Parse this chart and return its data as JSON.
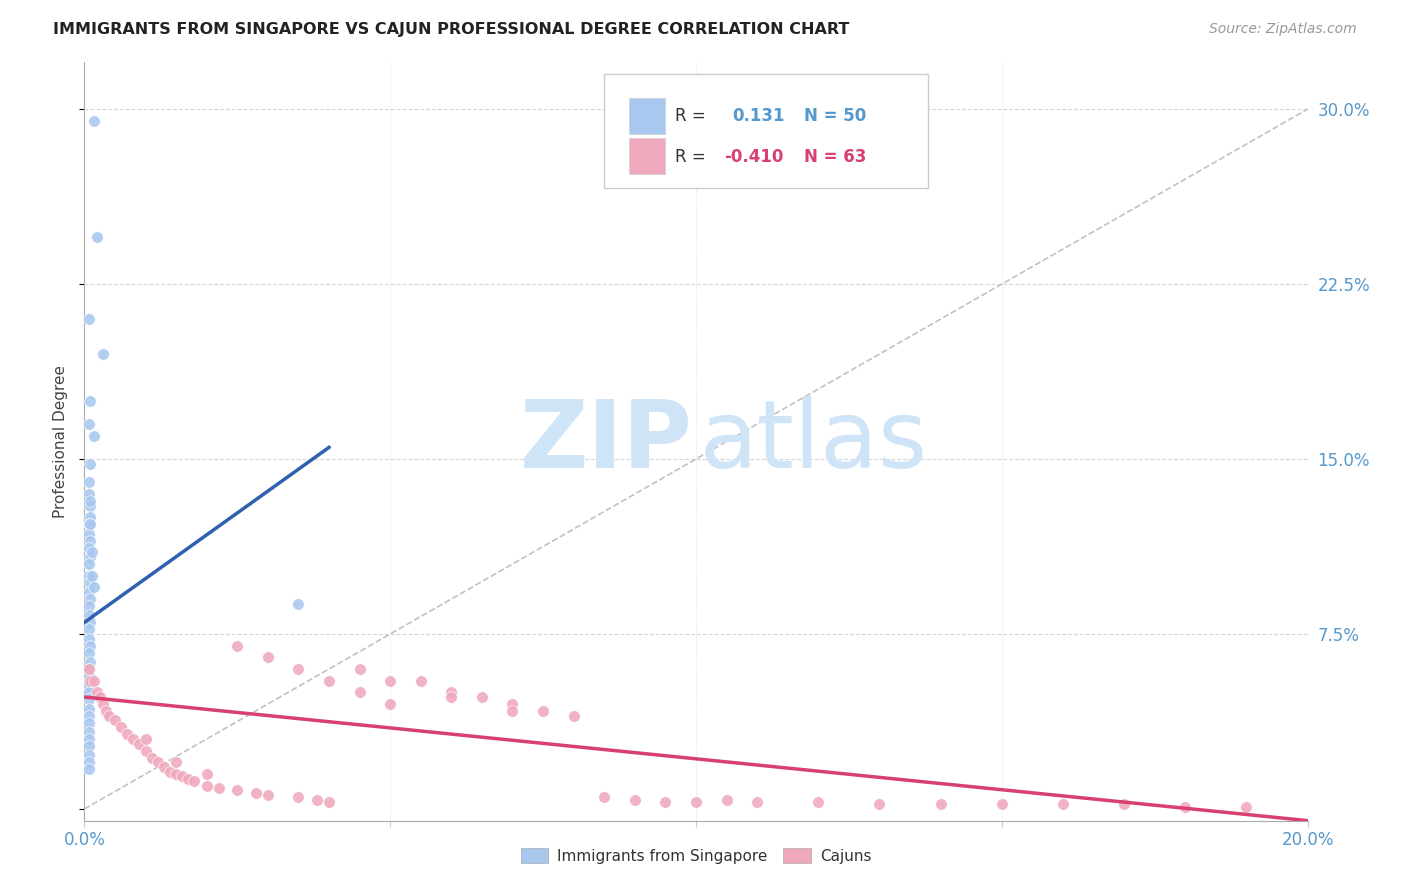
{
  "title": "IMMIGRANTS FROM SINGAPORE VS CAJUN PROFESSIONAL DEGREE CORRELATION CHART",
  "source": "Source: ZipAtlas.com",
  "ylabel": "Professional Degree",
  "blue_color": "#A8C8F0",
  "pink_color": "#F0A8BC",
  "blue_line_color": "#3060B0",
  "pink_line_color": "#D84070",
  "watermark_zip": "ZIP",
  "watermark_atlas": "atlas",
  "watermark_color": "#D0E4F8",
  "bg_color": "#FFFFFF",
  "grid_color": "#CCCCCC",
  "tick_color": "#5599CC",
  "title_color": "#222222",
  "source_color": "#999999",
  "blue_x": [
    0.0015,
    0.002,
    0.0008,
    0.003,
    0.001,
    0.0008,
    0.0015,
    0.001,
    0.0008,
    0.0008,
    0.001,
    0.001,
    0.0008,
    0.0008,
    0.001,
    0.0008,
    0.001,
    0.0008,
    0.0008,
    0.001,
    0.0008,
    0.001,
    0.0008,
    0.0008,
    0.001,
    0.0008,
    0.0008,
    0.001,
    0.0008,
    0.001,
    0.0008,
    0.0008,
    0.0008,
    0.035,
    0.0008,
    0.0008,
    0.0008,
    0.0008,
    0.0008,
    0.0008,
    0.0008,
    0.0008,
    0.0008,
    0.0008,
    0.0008,
    0.001,
    0.001,
    0.0012,
    0.0012,
    0.0015
  ],
  "blue_y": [
    0.295,
    0.245,
    0.21,
    0.195,
    0.175,
    0.165,
    0.16,
    0.148,
    0.14,
    0.135,
    0.13,
    0.125,
    0.122,
    0.118,
    0.115,
    0.112,
    0.108,
    0.105,
    0.1,
    0.097,
    0.093,
    0.09,
    0.087,
    0.083,
    0.08,
    0.077,
    0.073,
    0.07,
    0.067,
    0.063,
    0.06,
    0.057,
    0.053,
    0.088,
    0.05,
    0.047,
    0.043,
    0.04,
    0.037,
    0.033,
    0.03,
    0.027,
    0.023,
    0.02,
    0.017,
    0.132,
    0.122,
    0.11,
    0.1,
    0.095
  ],
  "pink_x": [
    0.0008,
    0.001,
    0.0015,
    0.002,
    0.0025,
    0.003,
    0.0035,
    0.004,
    0.005,
    0.006,
    0.007,
    0.008,
    0.009,
    0.01,
    0.011,
    0.012,
    0.013,
    0.014,
    0.015,
    0.016,
    0.017,
    0.018,
    0.02,
    0.022,
    0.025,
    0.028,
    0.03,
    0.035,
    0.038,
    0.04,
    0.045,
    0.05,
    0.055,
    0.06,
    0.065,
    0.07,
    0.075,
    0.08,
    0.085,
    0.09,
    0.095,
    0.1,
    0.105,
    0.11,
    0.12,
    0.13,
    0.14,
    0.15,
    0.16,
    0.17,
    0.18,
    0.19,
    0.025,
    0.03,
    0.035,
    0.04,
    0.045,
    0.05,
    0.06,
    0.07,
    0.02,
    0.015,
    0.01
  ],
  "pink_y": [
    0.06,
    0.055,
    0.055,
    0.05,
    0.048,
    0.045,
    0.042,
    0.04,
    0.038,
    0.035,
    0.032,
    0.03,
    0.028,
    0.025,
    0.022,
    0.02,
    0.018,
    0.016,
    0.015,
    0.014,
    0.013,
    0.012,
    0.01,
    0.009,
    0.008,
    0.007,
    0.006,
    0.005,
    0.004,
    0.003,
    0.06,
    0.055,
    0.055,
    0.05,
    0.048,
    0.045,
    0.042,
    0.04,
    0.005,
    0.004,
    0.003,
    0.003,
    0.004,
    0.003,
    0.003,
    0.002,
    0.002,
    0.002,
    0.002,
    0.002,
    0.001,
    0.001,
    0.07,
    0.065,
    0.06,
    0.055,
    0.05,
    0.045,
    0.048,
    0.042,
    0.015,
    0.02,
    0.03
  ],
  "blue_line_x": [
    0.0,
    0.04
  ],
  "blue_line_y": [
    0.08,
    0.155
  ],
  "pink_line_x": [
    0.0,
    0.2
  ],
  "pink_line_y": [
    0.048,
    -0.005
  ],
  "ref_line_x": [
    0.0,
    0.2
  ],
  "ref_line_y": [
    0.0,
    0.3
  ],
  "xlim": [
    0.0,
    0.2
  ],
  "ylim": [
    -0.005,
    0.32
  ],
  "yticks": [
    0.0,
    0.075,
    0.15,
    0.225,
    0.3
  ],
  "yticklabels_right": [
    "",
    "7.5%",
    "15.0%",
    "22.5%",
    "30.0%"
  ],
  "xtick_positions": [
    0.0,
    0.05,
    0.1,
    0.15,
    0.2
  ],
  "xtick_labels": [
    "0.0%",
    "",
    "",
    "",
    "20.0%"
  ]
}
